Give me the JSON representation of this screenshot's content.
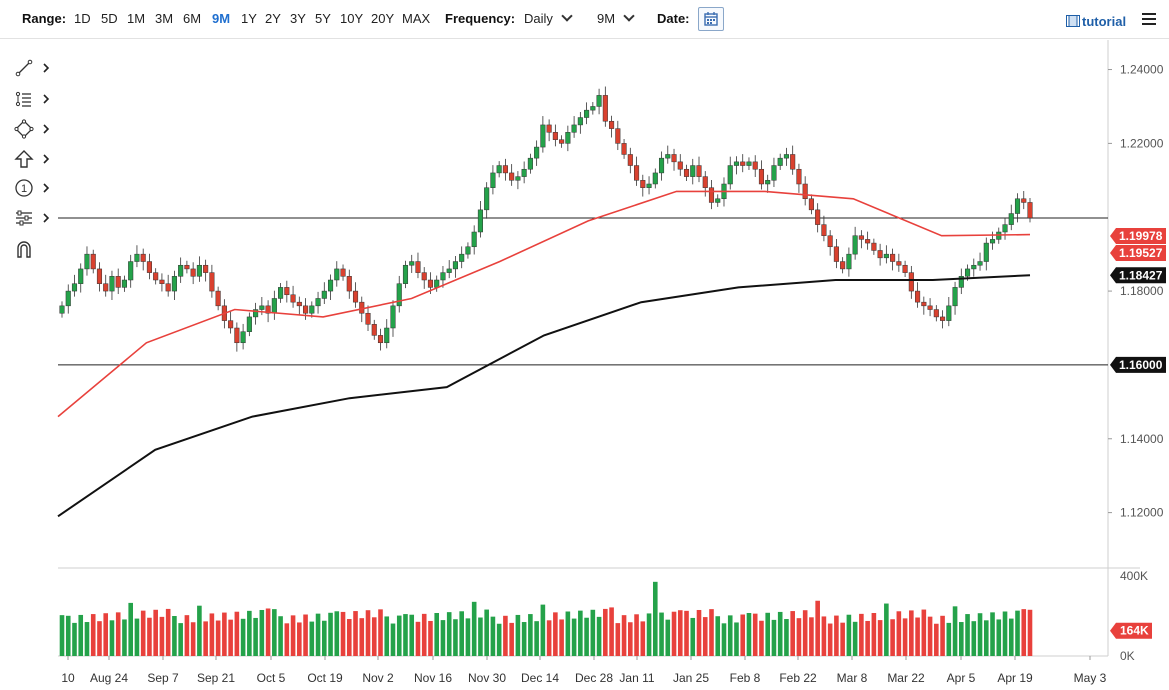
{
  "toolbar": {
    "range_label": "Range:",
    "ranges": [
      "1D",
      "5D",
      "1M",
      "3M",
      "6M",
      "9M",
      "1Y",
      "2Y",
      "3Y",
      "5Y",
      "10Y",
      "20Y",
      "MAX"
    ],
    "active_range": "9M",
    "frequency_label": "Frequency:",
    "frequency_value": "Daily",
    "period_value": "9M",
    "date_label": "Date:",
    "tutorial_label": "tutorial"
  },
  "icons": {
    "calendar": "calendar-icon",
    "film": "film-icon",
    "menu": "hamburger-menu-icon",
    "tools": [
      "line-tool-icon",
      "fibonacci-tool-icon",
      "shape-tool-icon",
      "arrow-up-tool-icon",
      "annotation-number-icon",
      "indicator-tool-icon",
      "magnet-icon"
    ]
  },
  "chart_data": {
    "type": "candlestick",
    "x_labels": [
      "10",
      "Aug 24",
      "Sep 7",
      "Sep 21",
      "Oct 5",
      "Oct 19",
      "Nov 2",
      "Nov 16",
      "Nov 30",
      "Dec 14",
      "Dec 28",
      "Jan 11",
      "Jan 25",
      "Feb 8",
      "Feb 22",
      "Mar 8",
      "Mar 22",
      "Apr 5",
      "Apr 19",
      "May 3"
    ],
    "y_ticks": [
      "1.24000",
      "1.22000",
      "1.18000",
      "1.14000",
      "1.12000"
    ],
    "ylim": [
      1.105,
      1.248
    ],
    "horizontal_lines": [
      1.19978,
      1.16
    ],
    "price_labels": [
      {
        "text": "1.19978",
        "value": 1.19978,
        "color": "#e8413c"
      },
      {
        "text": "1.19527",
        "value": 1.19527,
        "color": "#e8413c"
      },
      {
        "text": "1.18427",
        "value": 1.18427,
        "color": "#111111"
      },
      {
        "text": "1.16000",
        "value": 1.16,
        "color": "#111111"
      }
    ],
    "closes": [
      1.176,
      1.18,
      1.182,
      1.186,
      1.19,
      1.186,
      1.182,
      1.18,
      1.184,
      1.181,
      1.183,
      1.188,
      1.19,
      1.188,
      1.185,
      1.183,
      1.182,
      1.18,
      1.184,
      1.187,
      1.186,
      1.184,
      1.187,
      1.185,
      1.18,
      1.176,
      1.172,
      1.17,
      1.166,
      1.169,
      1.173,
      1.175,
      1.176,
      1.174,
      1.178,
      1.181,
      1.179,
      1.177,
      1.176,
      1.174,
      1.176,
      1.178,
      1.18,
      1.183,
      1.186,
      1.184,
      1.18,
      1.177,
      1.174,
      1.171,
      1.168,
      1.166,
      1.17,
      1.176,
      1.182,
      1.187,
      1.188,
      1.185,
      1.183,
      1.181,
      1.183,
      1.185,
      1.186,
      1.188,
      1.19,
      1.192,
      1.196,
      1.202,
      1.208,
      1.212,
      1.214,
      1.212,
      1.21,
      1.211,
      1.213,
      1.216,
      1.219,
      1.225,
      1.223,
      1.221,
      1.22,
      1.223,
      1.225,
      1.227,
      1.229,
      1.23,
      1.233,
      1.226,
      1.224,
      1.22,
      1.217,
      1.214,
      1.21,
      1.208,
      1.209,
      1.212,
      1.216,
      1.217,
      1.215,
      1.213,
      1.211,
      1.214,
      1.211,
      1.208,
      1.204,
      1.205,
      1.209,
      1.214,
      1.215,
      1.214,
      1.215,
      1.213,
      1.209,
      1.21,
      1.214,
      1.216,
      1.217,
      1.213,
      1.209,
      1.205,
      1.202,
      1.198,
      1.195,
      1.192,
      1.188,
      1.186,
      1.19,
      1.195,
      1.194,
      1.193,
      1.191,
      1.189,
      1.19,
      1.188,
      1.187,
      1.185,
      1.18,
      1.177,
      1.176,
      1.175,
      1.173,
      1.172,
      1.176,
      1.181,
      1.184,
      1.186,
      1.187,
      1.188,
      1.193,
      1.194,
      1.196,
      1.198,
      1.201,
      1.205,
      1.204,
      1.1998
    ],
    "series": [
      {
        "label": "red-moving-average",
        "color": "#e8413c",
        "values": [
          1.146,
          1.166,
          1.175,
          1.173,
          1.178,
          1.188,
          1.199,
          1.207,
          1.207,
          1.205,
          1.195,
          1.1953
        ]
      },
      {
        "label": "black-moving-average",
        "color": "#111111",
        "values": [
          1.119,
          1.137,
          1.146,
          1.151,
          1.154,
          1.168,
          1.177,
          1.181,
          1.183,
          1.183,
          1.1843
        ]
      }
    ],
    "volume": {
      "y_ticks": [
        "400K",
        "0K"
      ],
      "last_label": "164K",
      "last_value": 164,
      "max": 400
    }
  }
}
